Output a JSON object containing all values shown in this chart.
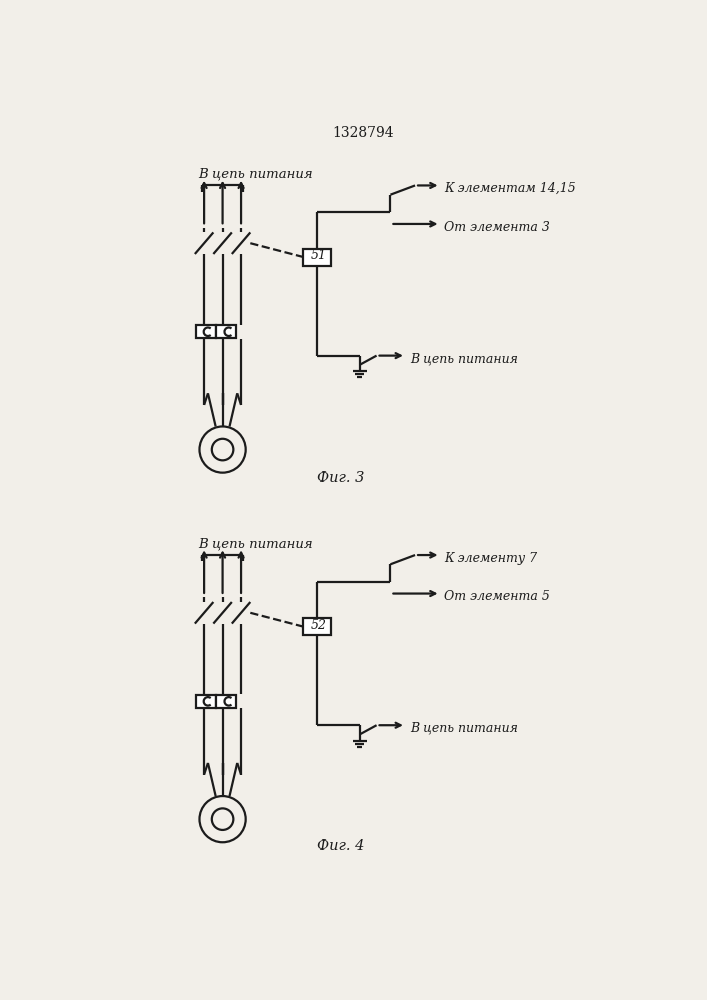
{
  "title": "1328794",
  "fig3_label": "Фиг. 3",
  "fig4_label": "Фиг. 4",
  "top_text": "В цепь питания",
  "fig3_k_text": "К элементам 14,15",
  "fig3_ot_text": "От элемента 3",
  "fig4_k_text": "К элементу 7",
  "fig4_ot_text": "От элемента 5",
  "bottom_text": "В цепь питания",
  "fig3_box_label": "51",
  "fig4_box_label": "52",
  "lc": "#1c1c1c",
  "bg": "#f2efe9"
}
